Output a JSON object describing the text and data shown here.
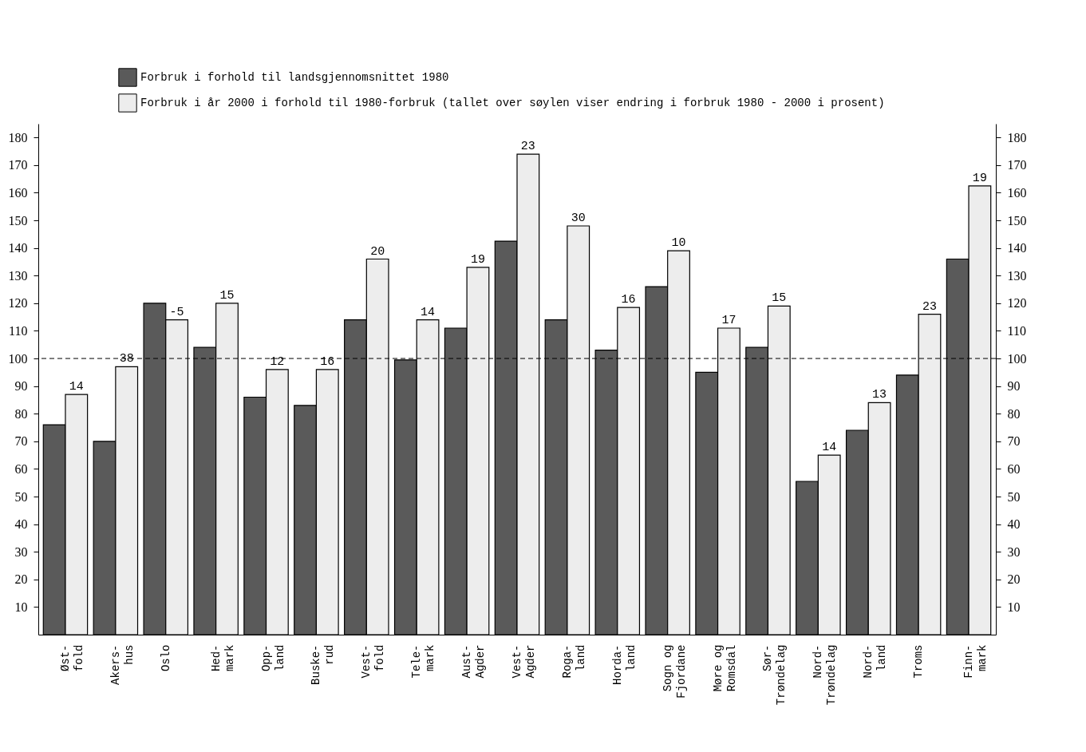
{
  "chart_data": {
    "type": "bar",
    "categories": [
      "Øst-\nfold",
      "Akers-\nhus",
      "Oslo",
      "Hed-\nmark",
      "Opp-\nland",
      "Buske-\nrud",
      "Vest-\nfold",
      "Tele-\nmark",
      "Aust-\nAgder",
      "Vest-\nAgder",
      "Roga-\nland",
      "Horda-\nland",
      "Sogn og\nFjordane",
      "Møre og\nRomsdal",
      "Sør-\nTrøndelag",
      "Nord-\nTrøndelag",
      "Nord-\nland",
      "Troms",
      "Finn-\nmark"
    ],
    "series": [
      {
        "name": "Forbruk i forhold til landsgjennomsnittet 1980",
        "color": "#5a5a5a",
        "values": [
          76,
          70,
          120,
          104,
          86,
          83,
          114,
          99.5,
          111,
          142.5,
          114,
          103,
          126,
          95,
          104,
          55.5,
          74,
          94,
          136
        ]
      },
      {
        "name": "Forbruk i år 2000 i forhold til 1980-forbruk (tallet over søylen viser endring i forbruk 1980 - 2000 i prosent)",
        "color": "#ededed",
        "values": [
          87,
          97,
          114,
          120,
          96,
          96,
          136,
          114,
          133,
          174,
          148,
          118.5,
          139,
          111,
          119,
          65,
          84,
          116,
          162.5
        ]
      }
    ],
    "annotations": [
      {
        "text": "14",
        "x": "Øst-\nfold",
        "y": 87
      },
      {
        "text": "38",
        "x": "Akers-\nhus",
        "y": 97
      },
      {
        "text": "-5",
        "x": "Oslo",
        "y": 114
      },
      {
        "text": "15",
        "x": "Hed-\nmark",
        "y": 120
      },
      {
        "text": "12",
        "x": "Opp-\nland",
        "y": 96
      },
      {
        "text": "16",
        "x": "Buske-\nrud",
        "y": 96
      },
      {
        "text": "20",
        "x": "Vest-\nfold",
        "y": 136
      },
      {
        "text": "14",
        "x": "Tele-\nmark",
        "y": 114
      },
      {
        "text": "19",
        "x": "Aust-\nAgder",
        "y": 133
      },
      {
        "text": "23",
        "x": "Vest-\nAgder",
        "y": 174
      },
      {
        "text": "30",
        "x": "Roga-\nland",
        "y": 148
      },
      {
        "text": "16",
        "x": "Horda-\nland",
        "y": 118.5
      },
      {
        "text": "10",
        "x": "Sogn og\nFjordane",
        "y": 139
      },
      {
        "text": "17",
        "x": "Møre og\nRomsdal",
        "y": 111
      },
      {
        "text": "15",
        "x": "Sør-\nTrøndelag",
        "y": 119
      },
      {
        "text": "14",
        "x": "Nord-\nTrøndelag",
        "y": 65
      },
      {
        "text": "13",
        "x": "Nord-\nland",
        "y": 84
      },
      {
        "text": "23",
        "x": "Troms",
        "y": 116
      },
      {
        "text": "19",
        "x": "Finn-\nmark",
        "y": 162.5
      }
    ],
    "ylim": [
      0,
      185
    ],
    "yticks": [
      10,
      20,
      30,
      40,
      50,
      60,
      70,
      80,
      90,
      100,
      110,
      120,
      130,
      140,
      150,
      160,
      170,
      180
    ],
    "y2lim": [
      0,
      185
    ],
    "y2ticks": [
      10,
      20,
      30,
      40,
      50,
      60,
      70,
      80,
      90,
      100,
      110,
      120,
      130,
      140,
      150,
      160,
      170,
      180
    ],
    "ref_lines": [
      {
        "axis": "y",
        "value": 100,
        "line_style": "dashed",
        "color": "#000000"
      }
    ],
    "legend": "top left",
    "grid": false
  }
}
